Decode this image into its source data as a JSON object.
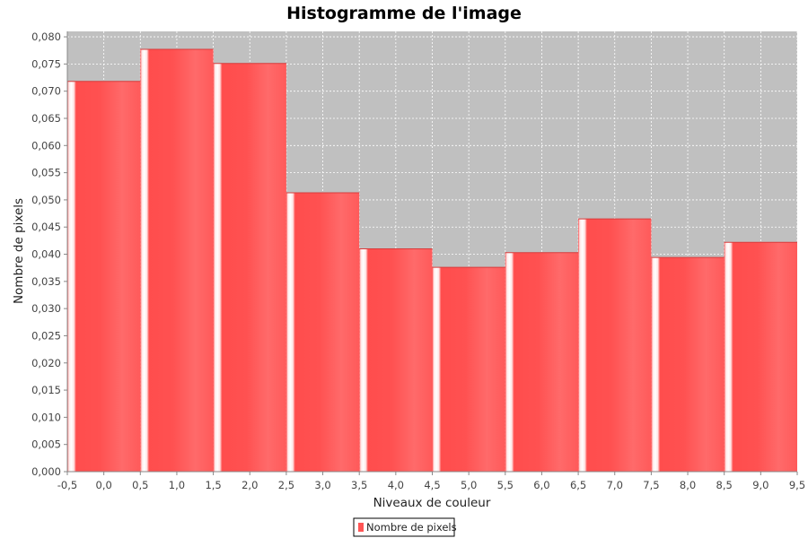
{
  "chart_data": {
    "type": "bar",
    "title": "Histogramme de l'image",
    "xlabel": "Niveaux de couleur",
    "ylabel": "Nombre de pixels",
    "categories": [
      "0",
      "1",
      "2",
      "3",
      "4",
      "5",
      "6",
      "7",
      "8",
      "9"
    ],
    "series": [
      {
        "name": "Nombre de pixels",
        "color": "#ff5555",
        "values": [
          0.0718,
          0.0777,
          0.0751,
          0.0513,
          0.041,
          0.0376,
          0.0403,
          0.0465,
          0.0394,
          0.0422
        ]
      }
    ],
    "bin_edges": [
      -0.5,
      0.5,
      1.5,
      2.5,
      3.5,
      4.5,
      5.5,
      6.5,
      7.5,
      8.5,
      9.5
    ],
    "xlim": [
      -0.5,
      9.5
    ],
    "ylim": [
      0,
      0.081
    ],
    "xticks": [
      -0.5,
      0.0,
      0.5,
      1.0,
      1.5,
      2.0,
      2.5,
      3.0,
      3.5,
      4.0,
      4.5,
      5.0,
      5.5,
      6.0,
      6.5,
      7.0,
      7.5,
      8.0,
      8.5,
      9.0,
      9.5
    ],
    "xtick_labels": [
      "-0,5",
      "0,0",
      "0,5",
      "1,0",
      "1,5",
      "2,0",
      "2,5",
      "3,0",
      "3,5",
      "4,0",
      "4,5",
      "5,0",
      "5,5",
      "6,0",
      "6,5",
      "7,0",
      "7,5",
      "8,0",
      "8,5",
      "9,0",
      "9,5"
    ],
    "yticks": [
      0.0,
      0.005,
      0.01,
      0.015,
      0.02,
      0.025,
      0.03,
      0.035,
      0.04,
      0.045,
      0.05,
      0.055,
      0.06,
      0.065,
      0.07,
      0.075,
      0.08
    ],
    "ytick_labels": [
      "0,000",
      "0,005",
      "0,010",
      "0,015",
      "0,020",
      "0,025",
      "0,030",
      "0,035",
      "0,040",
      "0,045",
      "0,050",
      "0,055",
      "0,060",
      "0,065",
      "0,070",
      "0,075",
      "0,080"
    ],
    "grid": true,
    "plot_background": "#c0c0c0",
    "grid_color": "#ffffff",
    "legend_position": "bottom-center"
  }
}
